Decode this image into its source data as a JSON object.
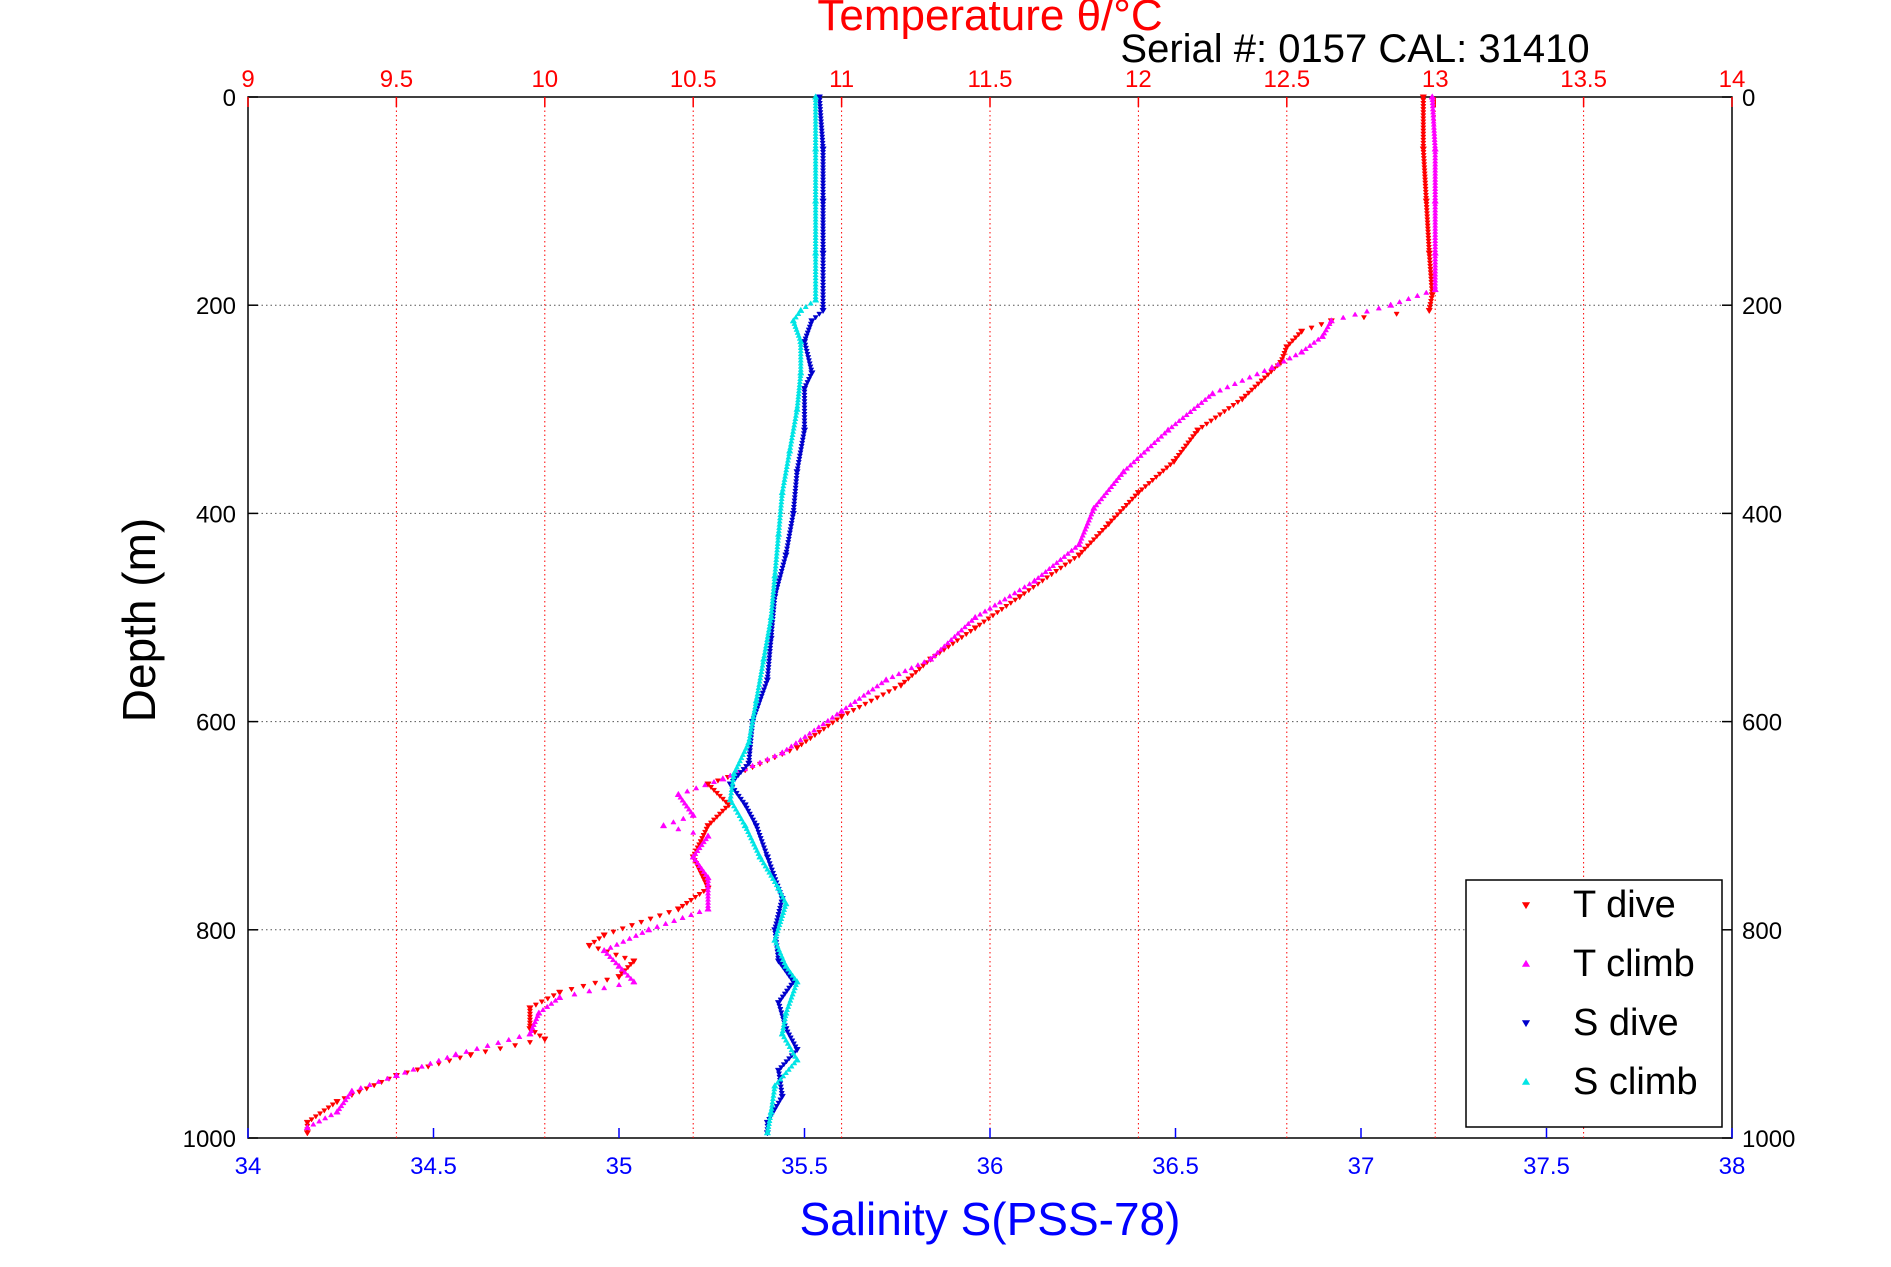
{
  "header": {
    "serial_label": "Serial #: 0157  CAL: 31410"
  },
  "colors": {
    "temperature_axis": "#ff0000",
    "salinity_axis": "#0000ff",
    "depth_axis": "#000000",
    "t_dive": "#ff0000",
    "t_climb": "#ff00ff",
    "s_dive": "#0000cc",
    "s_climb": "#00e5e5"
  },
  "chart_data": {
    "type": "scatter",
    "title": "Temperature θ/°C",
    "xlabel": "Salinity S(PSS-78)",
    "ylabel": "Depth (m)",
    "y_axis": {
      "range": [
        0,
        1000
      ],
      "inverted": true,
      "ticks": [
        0,
        200,
        400,
        600,
        800,
        1000
      ],
      "tick_labels": [
        "0",
        "200",
        "400",
        "600",
        "800",
        "1000"
      ],
      "grid": true
    },
    "x_top_axis": {
      "quantity": "Temperature",
      "range": [
        9,
        14
      ],
      "ticks": [
        9,
        9.5,
        10,
        10.5,
        11,
        11.5,
        12,
        12.5,
        13,
        13.5,
        14
      ],
      "tick_labels": [
        "9",
        "9.5",
        "10",
        "10.5",
        "11",
        "11.5",
        "12",
        "12.5",
        "13",
        "13.5",
        "14"
      ],
      "grid": true,
      "grid_color": "red"
    },
    "x_bottom_axis": {
      "quantity": "Salinity",
      "range": [
        34,
        38
      ],
      "ticks": [
        34,
        34.5,
        35,
        35.5,
        36,
        36.5,
        37,
        37.5,
        38
      ],
      "tick_labels": [
        "34",
        "34.5",
        "35",
        "35.5",
        "36",
        "36.5",
        "37",
        "37.5",
        "38"
      ],
      "grid": false
    },
    "legend": {
      "position": "bottom-right",
      "entries": [
        "T dive",
        "T climb",
        "S dive",
        "S climb"
      ]
    },
    "series": [
      {
        "name": "T dive",
        "axis": "temperature",
        "marker": "triangle-down",
        "points": [
          [
            12.96,
            0
          ],
          [
            12.96,
            50
          ],
          [
            12.97,
            100
          ],
          [
            12.98,
            150
          ],
          [
            12.99,
            190
          ],
          [
            12.98,
            205
          ],
          [
            12.65,
            215
          ],
          [
            12.55,
            225
          ],
          [
            12.5,
            240
          ],
          [
            12.48,
            255
          ],
          [
            12.35,
            290
          ],
          [
            12.2,
            320
          ],
          [
            12.12,
            350
          ],
          [
            12.0,
            380
          ],
          [
            11.9,
            410
          ],
          [
            11.8,
            440
          ],
          [
            11.6,
            480
          ],
          [
            11.45,
            510
          ],
          [
            11.3,
            540
          ],
          [
            11.2,
            565
          ],
          [
            11.0,
            595
          ],
          [
            10.85,
            625
          ],
          [
            10.65,
            650
          ],
          [
            10.55,
            660
          ],
          [
            10.62,
            680
          ],
          [
            10.55,
            700
          ],
          [
            10.5,
            730
          ],
          [
            10.55,
            760
          ],
          [
            10.45,
            780
          ],
          [
            10.2,
            805
          ],
          [
            10.15,
            815
          ],
          [
            10.3,
            830
          ],
          [
            10.25,
            845
          ],
          [
            10.05,
            860
          ],
          [
            9.95,
            875
          ],
          [
            9.95,
            895
          ],
          [
            10.0,
            905
          ],
          [
            9.75,
            920
          ],
          [
            9.5,
            940
          ],
          [
            9.3,
            965
          ],
          [
            9.2,
            985
          ],
          [
            9.2,
            995
          ]
        ]
      },
      {
        "name": "T climb",
        "axis": "temperature",
        "marker": "triangle-up",
        "points": [
          [
            12.99,
            0
          ],
          [
            13.0,
            50
          ],
          [
            13.0,
            100
          ],
          [
            13.0,
            150
          ],
          [
            13.0,
            185
          ],
          [
            12.85,
            200
          ],
          [
            12.65,
            215
          ],
          [
            12.62,
            230
          ],
          [
            12.55,
            245
          ],
          [
            12.45,
            260
          ],
          [
            12.25,
            285
          ],
          [
            12.1,
            320
          ],
          [
            11.95,
            360
          ],
          [
            11.85,
            395
          ],
          [
            11.8,
            430
          ],
          [
            11.65,
            465
          ],
          [
            11.45,
            500
          ],
          [
            11.3,
            540
          ],
          [
            11.15,
            560
          ],
          [
            11.0,
            590
          ],
          [
            10.8,
            630
          ],
          [
            10.6,
            655
          ],
          [
            10.45,
            670
          ],
          [
            10.5,
            690
          ],
          [
            10.4,
            700
          ],
          [
            10.55,
            710
          ],
          [
            10.5,
            730
          ],
          [
            10.55,
            750
          ],
          [
            10.55,
            780
          ],
          [
            10.35,
            800
          ],
          [
            10.2,
            820
          ],
          [
            10.25,
            835
          ],
          [
            10.3,
            850
          ],
          [
            10.05,
            865
          ],
          [
            9.98,
            880
          ],
          [
            9.95,
            900
          ],
          [
            9.7,
            920
          ],
          [
            9.5,
            940
          ],
          [
            9.35,
            955
          ],
          [
            9.3,
            975
          ],
          [
            9.2,
            990
          ]
        ]
      },
      {
        "name": "S dive",
        "axis": "salinity",
        "marker": "triangle-down",
        "points": [
          [
            35.54,
            0
          ],
          [
            35.55,
            50
          ],
          [
            35.55,
            100
          ],
          [
            35.55,
            150
          ],
          [
            35.55,
            205
          ],
          [
            35.52,
            215
          ],
          [
            35.5,
            235
          ],
          [
            35.52,
            265
          ],
          [
            35.5,
            280
          ],
          [
            35.5,
            320
          ],
          [
            35.48,
            360
          ],
          [
            35.47,
            400
          ],
          [
            35.45,
            440
          ],
          [
            35.42,
            480
          ],
          [
            35.41,
            520
          ],
          [
            35.4,
            560
          ],
          [
            35.36,
            600
          ],
          [
            35.35,
            640
          ],
          [
            35.3,
            660
          ],
          [
            35.34,
            680
          ],
          [
            35.37,
            700
          ],
          [
            35.4,
            730
          ],
          [
            35.44,
            770
          ],
          [
            35.42,
            800
          ],
          [
            35.43,
            830
          ],
          [
            35.47,
            850
          ],
          [
            35.43,
            870
          ],
          [
            35.45,
            895
          ],
          [
            35.48,
            915
          ],
          [
            35.43,
            935
          ],
          [
            35.44,
            960
          ],
          [
            35.4,
            985
          ],
          [
            35.4,
            995
          ]
        ]
      },
      {
        "name": "S climb",
        "axis": "salinity",
        "marker": "triangle-up",
        "points": [
          [
            35.53,
            0
          ],
          [
            35.53,
            50
          ],
          [
            35.53,
            100
          ],
          [
            35.53,
            150
          ],
          [
            35.53,
            195
          ],
          [
            35.49,
            205
          ],
          [
            35.47,
            215
          ],
          [
            35.49,
            235
          ],
          [
            35.49,
            265
          ],
          [
            35.48,
            300
          ],
          [
            35.46,
            340
          ],
          [
            35.44,
            380
          ],
          [
            35.43,
            420
          ],
          [
            35.42,
            460
          ],
          [
            35.41,
            500
          ],
          [
            35.39,
            540
          ],
          [
            35.37,
            580
          ],
          [
            35.35,
            620
          ],
          [
            35.31,
            650
          ],
          [
            35.3,
            675
          ],
          [
            35.34,
            700
          ],
          [
            35.38,
            730
          ],
          [
            35.43,
            760
          ],
          [
            35.45,
            775
          ],
          [
            35.42,
            810
          ],
          [
            35.45,
            835
          ],
          [
            35.48,
            850
          ],
          [
            35.45,
            880
          ],
          [
            35.44,
            900
          ],
          [
            35.48,
            925
          ],
          [
            35.42,
            950
          ],
          [
            35.41,
            975
          ],
          [
            35.4,
            995
          ]
        ]
      }
    ]
  }
}
